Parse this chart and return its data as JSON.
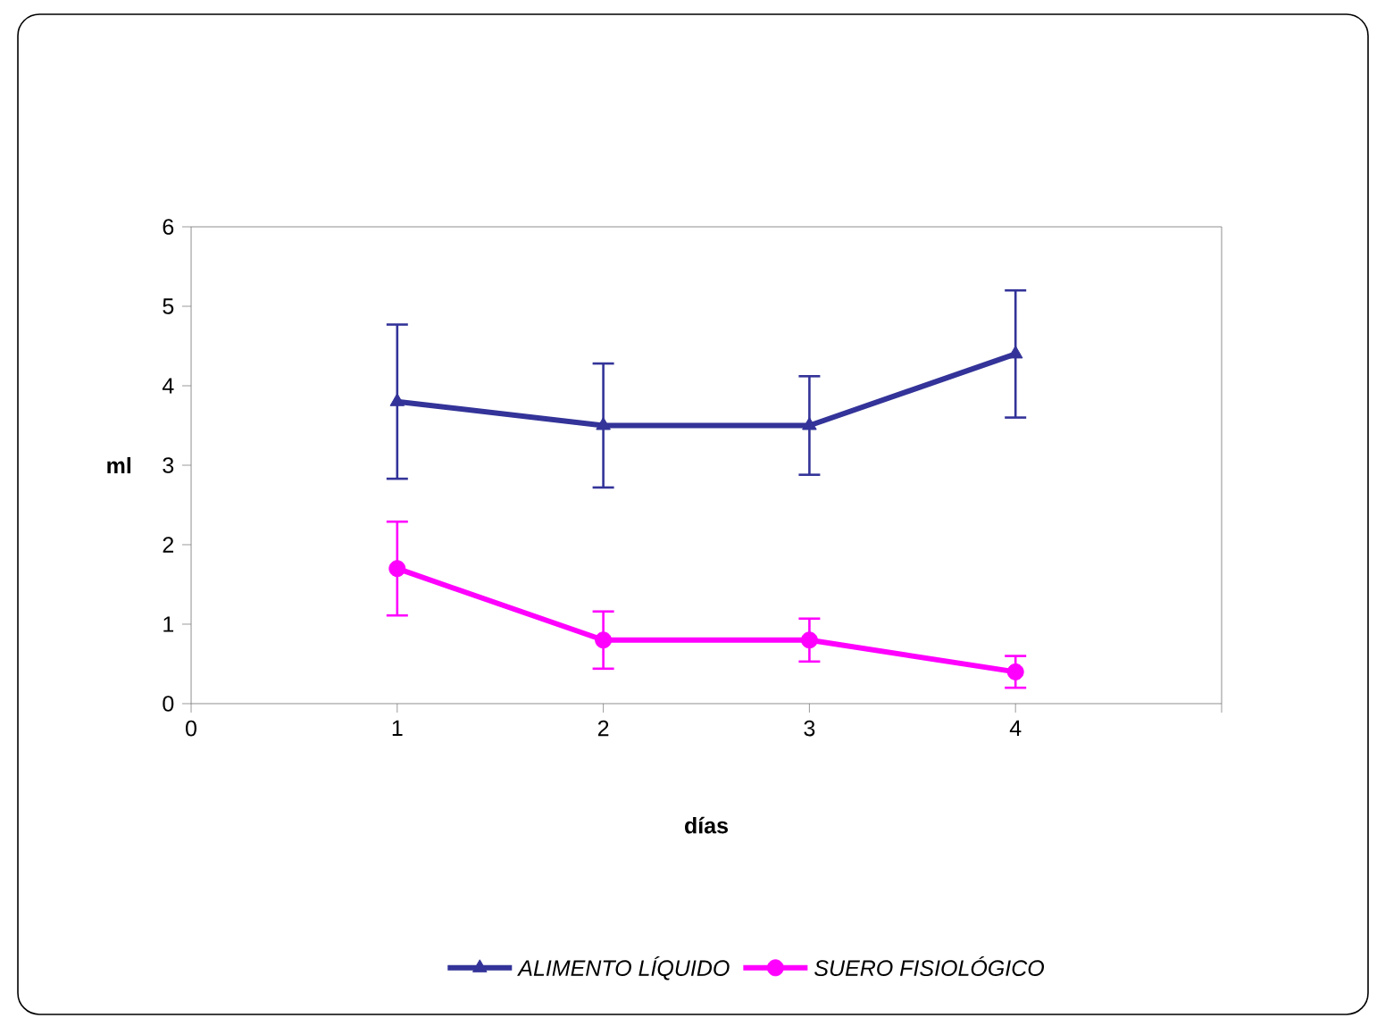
{
  "chart_data": {
    "type": "line",
    "xlabel": "días",
    "ylabel": "ml",
    "x": [
      1,
      2,
      3,
      4
    ],
    "series": [
      {
        "name": "ALIMENTO LÍQUIDO",
        "color": "#333399",
        "values": [
          3.8,
          3.5,
          3.5,
          4.4
        ],
        "errors": [
          0.97,
          0.78,
          0.62,
          0.8
        ],
        "marker": "triangle"
      },
      {
        "name": "SUERO FISIOLÓGICO",
        "color": "#ff00ff",
        "values": [
          1.7,
          0.8,
          0.8,
          0.4
        ],
        "errors": [
          0.59,
          0.36,
          0.27,
          0.2
        ],
        "marker": "circle"
      }
    ],
    "xlim": [
      0,
      5
    ],
    "xticks": [
      0,
      1,
      2,
      3,
      4,
      {
        "value": 5,
        "label": null
      }
    ],
    "ylim": [
      0,
      6
    ],
    "yticks": [
      0,
      1,
      2,
      3,
      4,
      5,
      6
    ],
    "grid": false,
    "legend": "bottom",
    "line_style": "solid"
  }
}
